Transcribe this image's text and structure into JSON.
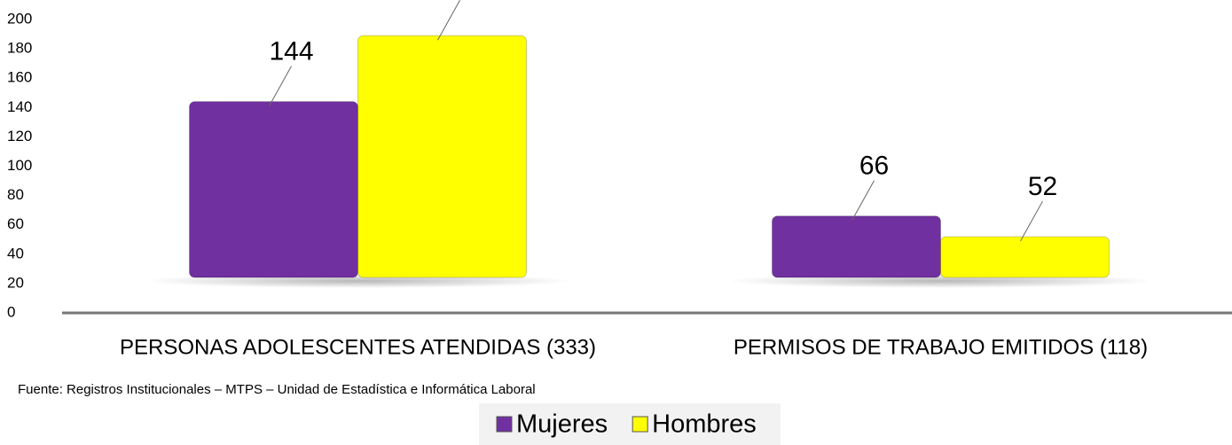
{
  "chart_data": {
    "type": "bar",
    "categories": [
      "PERSONAS ADOLESCENTES ATENDIDAS (333)",
      "PERMISOS DE TRABAJO EMITIDOS (118)"
    ],
    "series": [
      {
        "name": "Mujeres",
        "color": "#7030a0",
        "values": [
          144,
          66
        ]
      },
      {
        "name": "Hombres",
        "color": "#ffff00",
        "values": [
          189,
          52
        ]
      }
    ],
    "ylim": [
      0,
      200
    ],
    "yticks": [
      0,
      20,
      40,
      60,
      80,
      100,
      120,
      140,
      160,
      180,
      200
    ],
    "source": "Fuente: Registros Institucionales – MTPS – Unidad de Estadística e Informática Laboral"
  }
}
